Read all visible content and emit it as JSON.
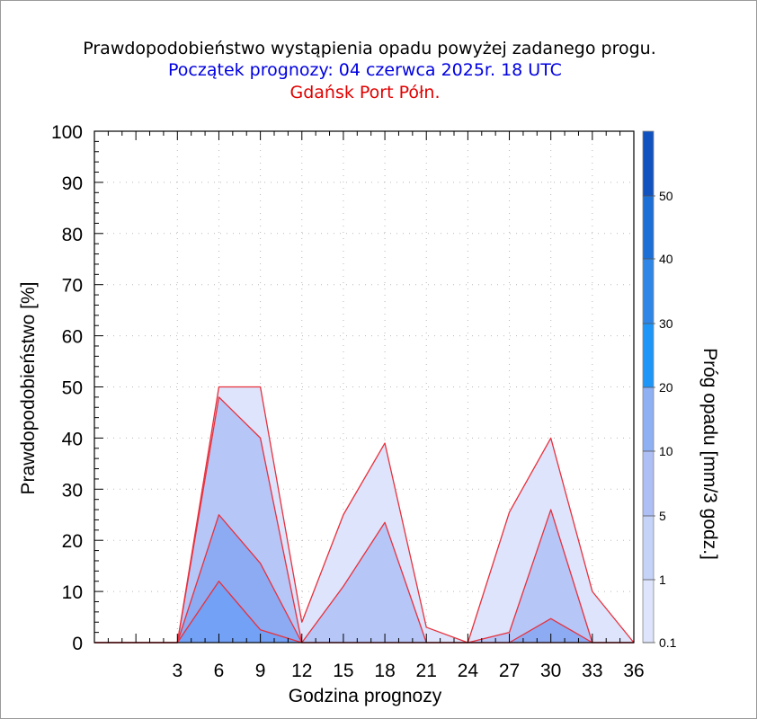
{
  "title": "Prawdopodobieństwo wystąpienia opadu powyżej zadanego progu.",
  "subtitle": "Początek prognozy: 04 czerwca 2025r. 18 UTC",
  "location": "Gdańsk Port Półn.",
  "colors": {
    "title": "#000000",
    "subtitle": "#0000e0",
    "location": "#e00000",
    "edge": "#e8303c"
  },
  "chart_data": {
    "type": "area",
    "xlabel": "Godzina prognozy",
    "ylabel": "Prawdopodobieństwo [%]",
    "xlim": [
      -3,
      36
    ],
    "ylim": [
      0,
      100
    ],
    "x_ticks": [
      3,
      6,
      9,
      12,
      15,
      18,
      21,
      24,
      27,
      30,
      33,
      36
    ],
    "y_ticks": [
      0,
      10,
      20,
      30,
      40,
      50,
      60,
      70,
      80,
      90,
      100
    ],
    "grid": true,
    "x": [
      -3,
      0,
      3,
      6,
      9,
      12,
      15,
      18,
      21,
      24,
      27,
      30,
      33,
      36
    ],
    "series": [
      {
        "threshold": "0.1",
        "color": "#dde4fb",
        "values": [
          0,
          0,
          0,
          50,
          50,
          4,
          25,
          39,
          3,
          0,
          25.5,
          40,
          10,
          0
        ]
      },
      {
        "threshold": "1",
        "color": "#b6c6f7",
        "values": [
          0,
          0,
          0,
          48,
          40,
          0,
          11,
          23.5,
          0,
          0,
          2,
          26,
          0,
          0
        ]
      },
      {
        "threshold": "5",
        "color": "#8dabf2",
        "values": [
          0,
          0,
          0,
          25,
          15.5,
          0,
          0,
          0,
          0,
          0,
          0,
          4.7,
          0,
          0
        ]
      },
      {
        "threshold": "10",
        "color": "#72a1f5",
        "values": [
          0,
          0,
          0,
          12,
          2.5,
          0,
          0,
          0,
          0,
          0,
          0,
          0,
          0,
          0
        ]
      }
    ],
    "colorbar": {
      "label": "Próg opadu [mm/3 godz.]",
      "labels": [
        "0.1",
        "1",
        "5",
        "10",
        "20",
        "30",
        "40",
        "50"
      ],
      "colors": [
        "#dde4fb",
        "#c6d3f8",
        "#aebff5",
        "#8fb1f4",
        "#1e96f7",
        "#2f86e6",
        "#1c6fd6",
        "#1052bf",
        "#0a3fa8"
      ]
    }
  }
}
